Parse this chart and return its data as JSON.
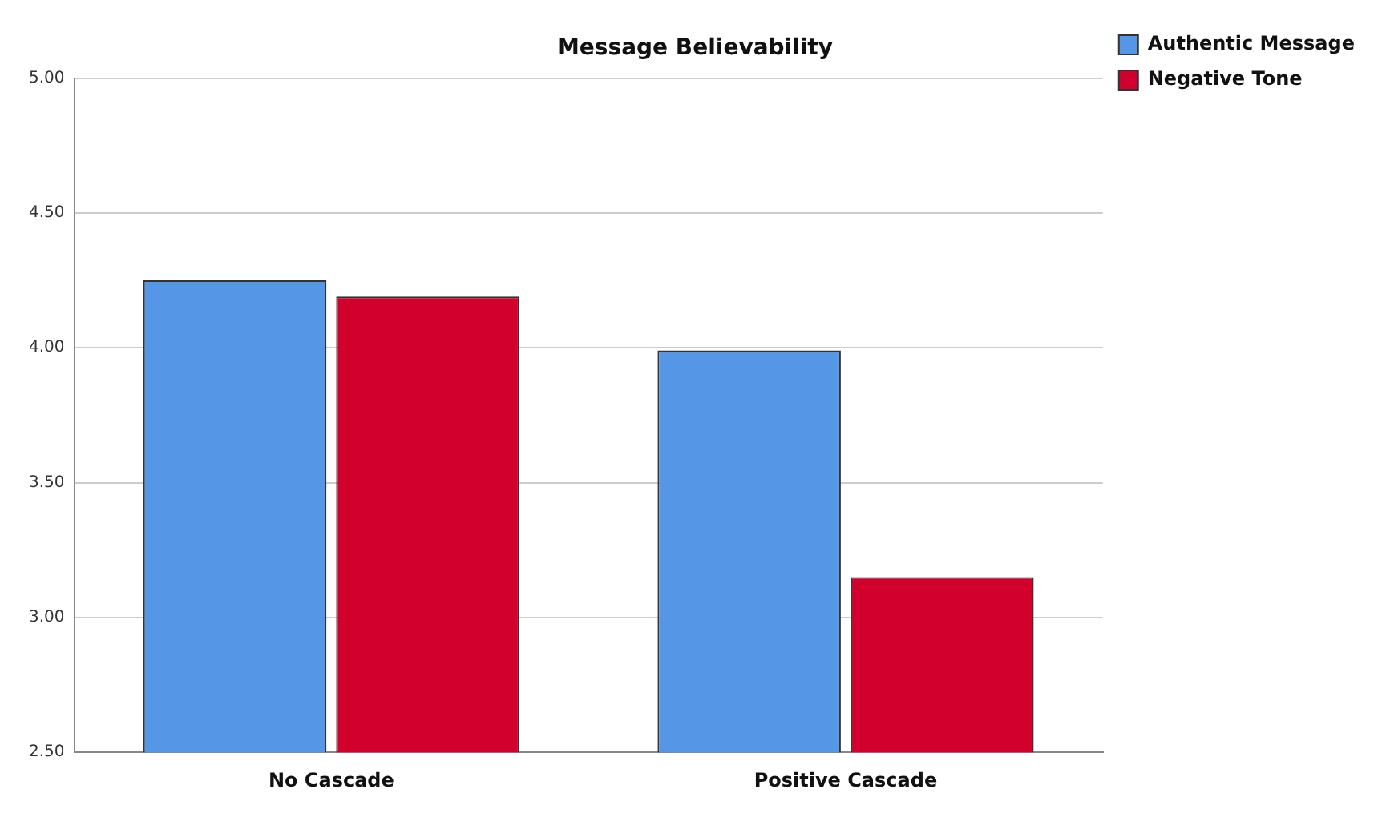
{
  "chart_data": {
    "type": "bar",
    "title": "Message Believability",
    "categories": [
      "No Cascade",
      "Positive Cascade"
    ],
    "series": [
      {
        "name": "Authentic Message",
        "color": "#5596e6",
        "values": [
          4.25,
          3.99
        ]
      },
      {
        "name": "Negative Tone",
        "color": "#d2002d",
        "values": [
          4.19,
          3.15
        ]
      }
    ],
    "ylim": [
      2.5,
      5
    ],
    "yticks": [
      {
        "value": 2.5,
        "label": "2.50"
      },
      {
        "value": 3,
        "label": "3.00"
      },
      {
        "value": 3.5,
        "label": "3.50"
      },
      {
        "value": 4,
        "label": "4.00"
      },
      {
        "value": 4.5,
        "label": "4.50"
      },
      {
        "value": 5,
        "label": "5.00"
      }
    ],
    "grid": "y",
    "legend": "top right"
  }
}
